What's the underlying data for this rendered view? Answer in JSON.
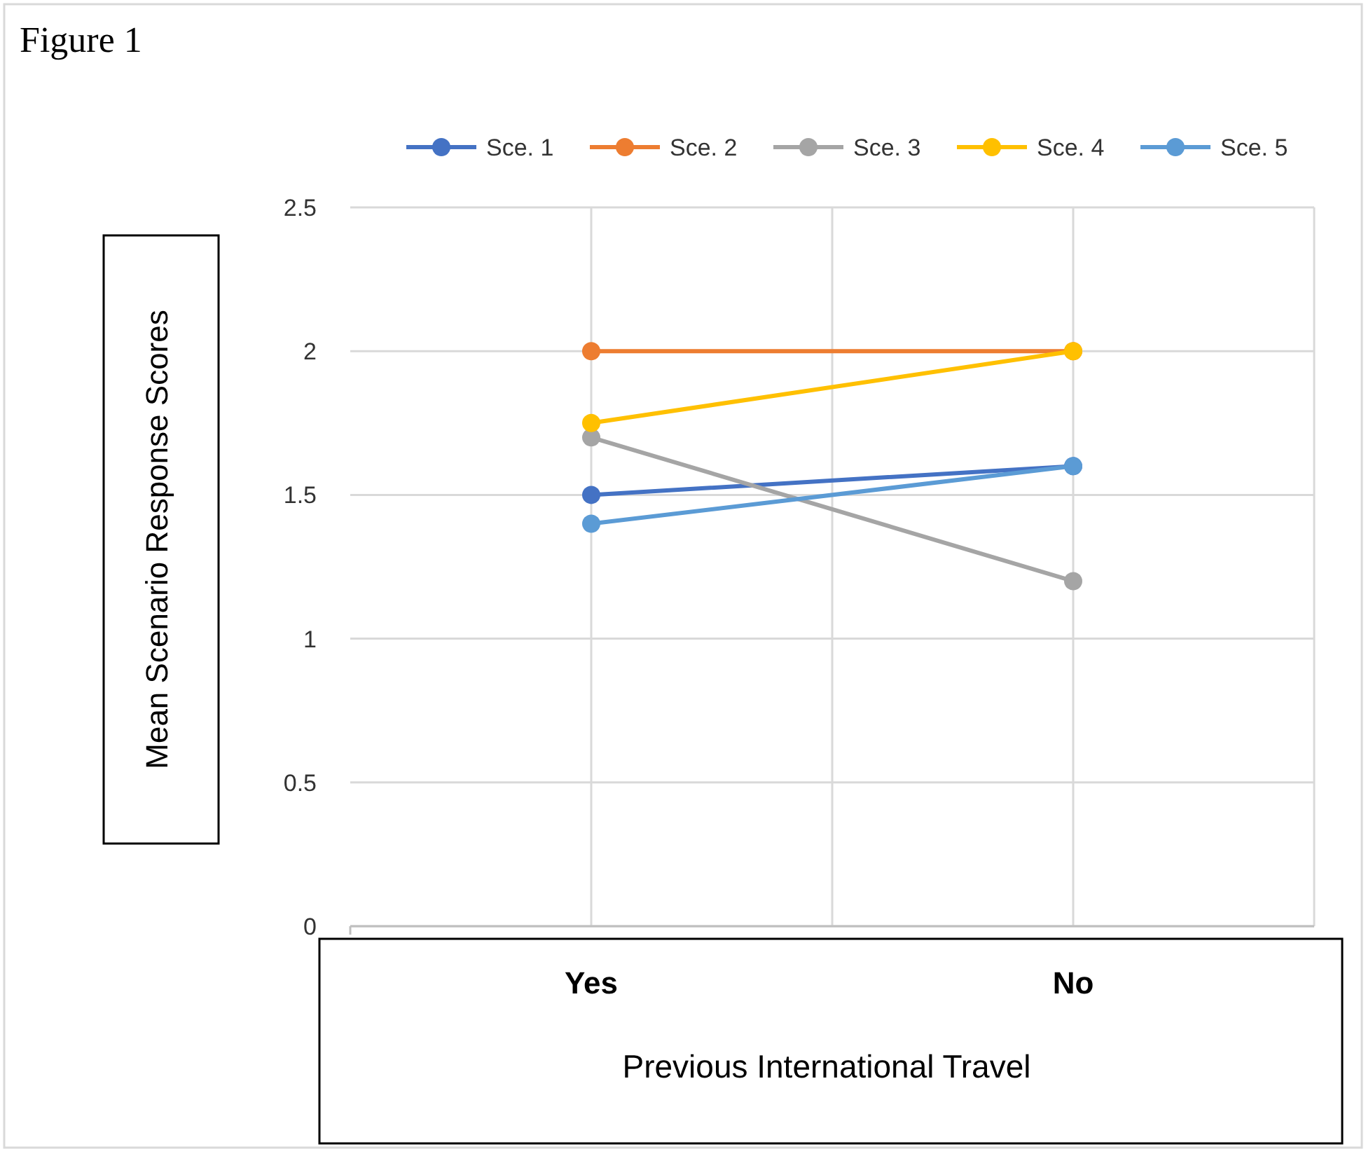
{
  "chart_data": {
    "type": "line",
    "title": "Figure 1",
    "xlabel": "Previous International Travel",
    "ylabel": "Mean Scenario Response Scores",
    "categories": [
      "Yes",
      "No"
    ],
    "series": [
      {
        "name": "Sce. 1",
        "color": "#4472c4",
        "values": [
          1.5,
          1.6
        ]
      },
      {
        "name": "Sce. 2",
        "color": "#ed7d31",
        "values": [
          2,
          2
        ]
      },
      {
        "name": "Sce. 3",
        "color": "#a5a5a5",
        "values": [
          1.7,
          1.2
        ]
      },
      {
        "name": "Sce. 4",
        "color": "#ffc000",
        "values": [
          1.75,
          2
        ]
      },
      {
        "name": "Sce. 5",
        "color": "#5b9bd5",
        "values": [
          1.4,
          1.6
        ]
      }
    ],
    "ylim": [
      0,
      2.5
    ],
    "yticks": [
      0,
      0.5,
      1,
      1.5,
      2,
      2.5
    ],
    "grid": true,
    "legend": "top",
    "marker": "circle",
    "line_style": "solid"
  }
}
